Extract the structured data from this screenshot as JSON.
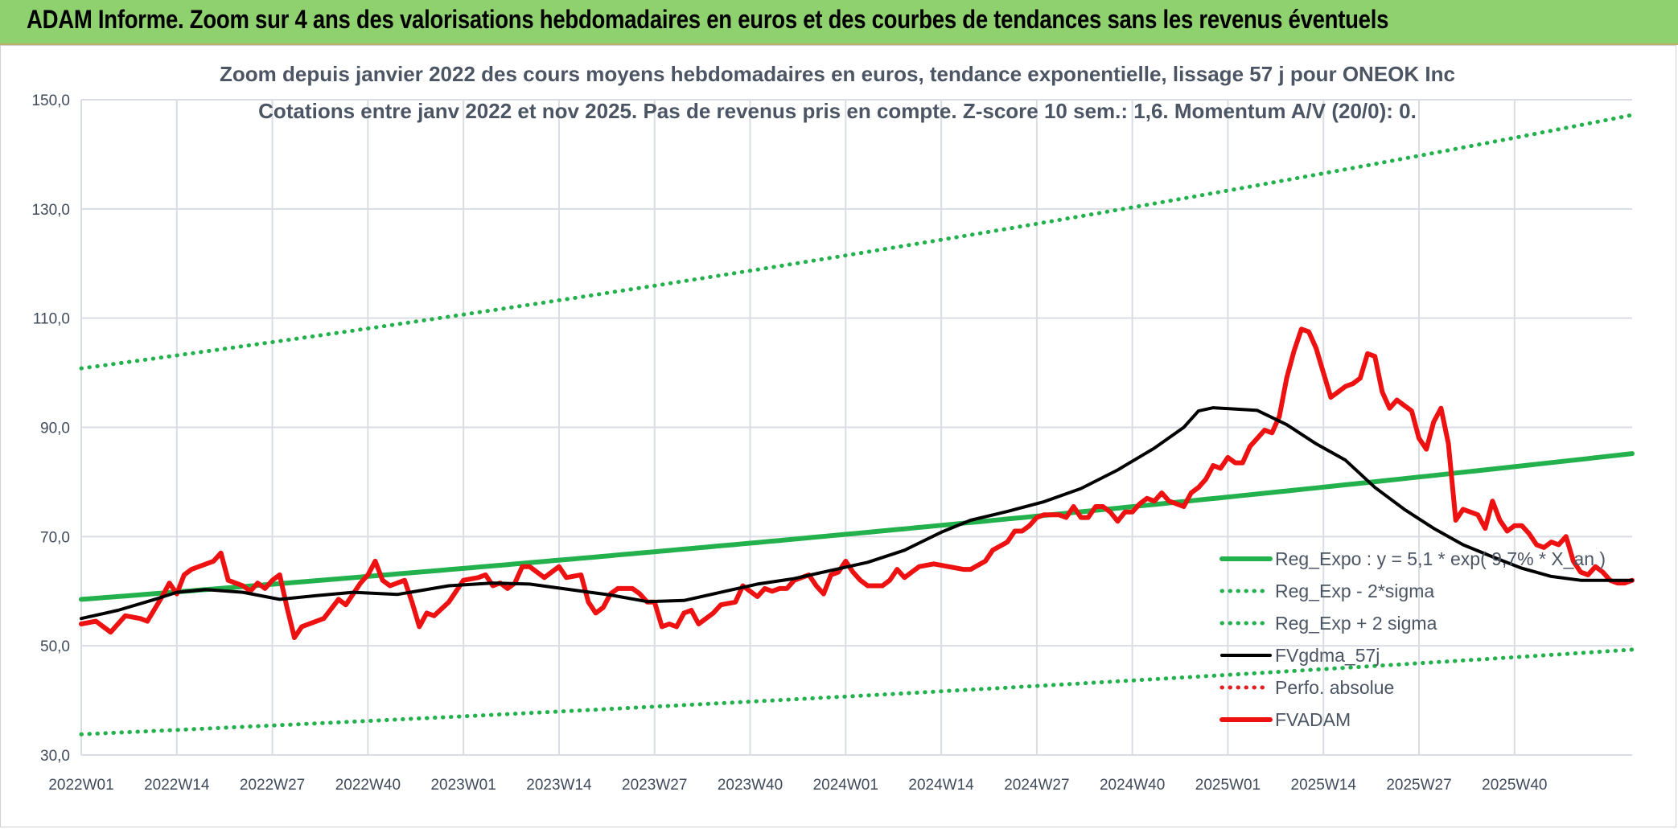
{
  "header": {
    "title": "ADAM Informe. Zoom sur 4 ans des valorisations hebdomadaires en euros et des courbes de tendances sans les revenus éventuels"
  },
  "colors": {
    "header_bg": "#8fd16f",
    "reg_expo": "#22b14c",
    "bands": "#22b14c",
    "fvgdma": "#000000",
    "perfo": "#e02020",
    "fvadam": "#ee1111",
    "grid": "#d9dde3"
  },
  "chart_data": {
    "type": "line",
    "subtitle_lines": [
      "Zoom depuis janvier 2022 des cours moyens hebdomadaires en euros, tendance exponentielle, lissage 57 j pour ONEOK Inc",
      "Cotations entre janv 2022 et nov 2025. Pas de revenus pris en compte. Z-score 10 sem.: 1,6. Momentum A/V (20/0): 0."
    ],
    "ylim": [
      30,
      150
    ],
    "yticks": [
      "30,0",
      "50,0",
      "70,0",
      "90,0",
      "110,0",
      "130,0",
      "150,0"
    ],
    "ytick_values": [
      30,
      50,
      70,
      90,
      110,
      130,
      150
    ],
    "xticks": [
      "2022W01",
      "2022W14",
      "2022W27",
      "2022W40",
      "2023W01",
      "2023W14",
      "2023W27",
      "2023W40",
      "2024W01",
      "2024W14",
      "2024W27",
      "2024W40",
      "2025W01",
      "2025W14",
      "2025W27",
      "2025W40"
    ],
    "xtick_index": [
      0,
      13,
      26,
      39,
      52,
      65,
      78,
      91,
      104,
      117,
      130,
      143,
      156,
      169,
      182,
      195
    ],
    "n_weeks": 212,
    "grid": true,
    "legend_position": "right",
    "series": [
      {
        "name": "Reg_Expo : y = 5,1 * exp( 9,7% * X_an )",
        "style": "solid-thick",
        "color_key": "reg_expo",
        "key_points": [
          [
            0,
            58.5
          ],
          [
            211,
            85.2
          ]
        ],
        "interp": "exp"
      },
      {
        "name": "Reg_Exp - 2*sigma",
        "style": "dotted",
        "color_key": "bands",
        "key_points": [
          [
            0,
            33.8
          ],
          [
            211,
            49.3
          ]
        ],
        "interp": "exp"
      },
      {
        "name": "Reg_Exp + 2 sigma",
        "style": "dotted",
        "color_key": "bands",
        "key_points": [
          [
            0,
            100.8
          ],
          [
            211,
            147.2
          ]
        ],
        "interp": "exp"
      },
      {
        "name": "FVgdma_57j",
        "style": "solid",
        "color_key": "fvgdma",
        "key_points": [
          [
            0,
            55
          ],
          [
            5,
            56.5
          ],
          [
            10,
            58.5
          ],
          [
            13,
            59.8
          ],
          [
            17,
            60.3
          ],
          [
            22,
            59.8
          ],
          [
            27,
            58.5
          ],
          [
            32,
            59.2
          ],
          [
            37,
            59.8
          ],
          [
            43,
            59.4
          ],
          [
            50,
            61
          ],
          [
            56,
            61.5
          ],
          [
            61,
            61.3
          ],
          [
            67,
            60.2
          ],
          [
            72,
            59.3
          ],
          [
            77,
            58.1
          ],
          [
            82,
            58.3
          ],
          [
            87,
            59.8
          ],
          [
            92,
            61.3
          ],
          [
            97,
            62.3
          ],
          [
            102,
            63.8
          ],
          [
            107,
            65.3
          ],
          [
            112,
            67.5
          ],
          [
            117,
            70.8
          ],
          [
            121,
            73
          ],
          [
            126,
            74.6
          ],
          [
            131,
            76.4
          ],
          [
            136,
            78.8
          ],
          [
            141,
            82.2
          ],
          [
            146,
            86.2
          ],
          [
            150,
            90
          ],
          [
            152,
            93
          ],
          [
            154,
            93.6
          ],
          [
            160,
            93.1
          ],
          [
            164,
            90.5
          ],
          [
            168,
            87
          ],
          [
            172,
            84
          ],
          [
            176,
            79
          ],
          [
            180,
            75
          ],
          [
            184,
            71.5
          ],
          [
            188,
            68.5
          ],
          [
            192,
            66.3
          ],
          [
            196,
            64.2
          ],
          [
            200,
            62.7
          ],
          [
            204,
            62
          ],
          [
            211,
            62
          ]
        ]
      },
      {
        "name": "Perfo. absolue",
        "style": "dotted",
        "color_key": "perfo",
        "key_points": []
      },
      {
        "name": "FVADAM",
        "style": "solid-thick",
        "color_key": "fvadam",
        "key_points": [
          [
            0,
            54
          ],
          [
            2,
            54.5
          ],
          [
            4,
            52.5
          ],
          [
            6,
            55.5
          ],
          [
            8,
            55
          ],
          [
            9,
            54.5
          ],
          [
            11,
            59
          ],
          [
            12,
            61.5
          ],
          [
            13,
            59.5
          ],
          [
            14,
            63
          ],
          [
            15,
            64
          ],
          [
            17,
            65
          ],
          [
            18,
            65.5
          ],
          [
            19,
            67
          ],
          [
            20,
            62
          ],
          [
            22,
            61
          ],
          [
            23,
            60
          ],
          [
            24,
            61.5
          ],
          [
            25,
            60.5
          ],
          [
            26,
            62
          ],
          [
            27,
            63
          ],
          [
            28,
            57
          ],
          [
            29,
            51.5
          ],
          [
            30,
            53.5
          ],
          [
            32,
            54.5
          ],
          [
            33,
            55
          ],
          [
            35,
            58.5
          ],
          [
            36,
            57.5
          ],
          [
            38,
            61.5
          ],
          [
            39,
            63
          ],
          [
            40,
            65.5
          ],
          [
            41,
            62
          ],
          [
            42,
            61
          ],
          [
            43,
            61.5
          ],
          [
            44,
            62
          ],
          [
            45,
            58
          ],
          [
            46,
            53.5
          ],
          [
            47,
            56
          ],
          [
            48,
            55.5
          ],
          [
            50,
            58
          ],
          [
            51,
            60
          ],
          [
            52,
            62
          ],
          [
            54,
            62.5
          ],
          [
            55,
            63
          ],
          [
            56,
            61
          ],
          [
            57,
            61.5
          ],
          [
            58,
            60.5
          ],
          [
            59,
            61.5
          ],
          [
            60,
            64.5
          ],
          [
            61,
            64.5
          ],
          [
            62,
            63.5
          ],
          [
            63,
            62.5
          ],
          [
            65,
            64.5
          ],
          [
            66,
            62.5
          ],
          [
            68,
            63
          ],
          [
            69,
            58
          ],
          [
            70,
            56
          ],
          [
            71,
            57
          ],
          [
            72,
            59.5
          ],
          [
            73,
            60.5
          ],
          [
            75,
            60.5
          ],
          [
            76,
            59.5
          ],
          [
            77,
            58
          ],
          [
            78,
            58
          ],
          [
            79,
            53.5
          ],
          [
            80,
            54
          ],
          [
            81,
            53.5
          ],
          [
            82,
            56
          ],
          [
            83,
            56.5
          ],
          [
            84,
            54
          ],
          [
            85,
            55
          ],
          [
            86,
            56
          ],
          [
            87,
            57.5
          ],
          [
            89,
            58
          ],
          [
            90,
            61
          ],
          [
            91,
            60
          ],
          [
            92,
            59
          ],
          [
            93,
            60.5
          ],
          [
            94,
            60
          ],
          [
            95,
            60.5
          ],
          [
            96,
            60.5
          ],
          [
            97,
            62
          ],
          [
            98,
            62.5
          ],
          [
            99,
            63
          ],
          [
            100,
            61
          ],
          [
            101,
            59.5
          ],
          [
            102,
            63
          ],
          [
            103,
            63.5
          ],
          [
            104,
            65.5
          ],
          [
            105,
            63.5
          ],
          [
            106,
            62
          ],
          [
            107,
            61
          ],
          [
            108,
            61
          ],
          [
            109,
            61
          ],
          [
            110,
            62
          ],
          [
            111,
            64
          ],
          [
            112,
            62.5
          ],
          [
            113,
            63.5
          ],
          [
            114,
            64.5
          ],
          [
            116,
            65
          ],
          [
            118,
            64.5
          ],
          [
            120,
            64
          ],
          [
            121,
            64
          ],
          [
            123,
            65.5
          ],
          [
            124,
            67.5
          ],
          [
            126,
            69
          ],
          [
            127,
            71
          ],
          [
            128,
            71
          ],
          [
            129,
            72
          ],
          [
            130,
            73.5
          ],
          [
            131,
            74
          ],
          [
            133,
            74
          ],
          [
            134,
            73.5
          ],
          [
            135,
            75.5
          ],
          [
            136,
            73.5
          ],
          [
            137,
            73.5
          ],
          [
            138,
            75.5
          ],
          [
            139,
            75.5
          ],
          [
            140,
            74.5
          ],
          [
            141,
            72.8
          ],
          [
            142,
            74.5
          ],
          [
            143,
            74.5
          ],
          [
            144,
            76
          ],
          [
            145,
            77
          ],
          [
            146,
            76.5
          ],
          [
            147,
            78
          ],
          [
            148,
            76.5
          ],
          [
            149,
            76
          ],
          [
            150,
            75.5
          ],
          [
            151,
            78
          ],
          [
            152,
            79
          ],
          [
            153,
            80.5
          ],
          [
            154,
            83
          ],
          [
            155,
            82.5
          ],
          [
            156,
            84.5
          ],
          [
            157,
            83.5
          ],
          [
            158,
            83.5
          ],
          [
            159,
            86.5
          ],
          [
            160,
            88
          ],
          [
            161,
            89.5
          ],
          [
            162,
            89
          ],
          [
            163,
            92
          ],
          [
            164,
            99
          ],
          [
            165,
            104
          ],
          [
            166,
            108
          ],
          [
            167,
            107.5
          ],
          [
            168,
            104.5
          ],
          [
            169,
            100
          ],
          [
            170,
            95.5
          ],
          [
            171,
            96.5
          ],
          [
            172,
            97.5
          ],
          [
            173,
            98
          ],
          [
            174,
            99
          ],
          [
            175,
            103.5
          ],
          [
            176,
            103
          ],
          [
            177,
            96.5
          ],
          [
            178,
            93.5
          ],
          [
            179,
            95
          ],
          [
            180,
            94
          ],
          [
            181,
            93
          ],
          [
            182,
            88
          ],
          [
            183,
            86
          ],
          [
            184,
            91
          ],
          [
            185,
            93.5
          ],
          [
            186,
            87
          ],
          [
            187,
            73
          ],
          [
            188,
            75
          ],
          [
            189,
            74.5
          ],
          [
            190,
            74
          ],
          [
            191,
            71.5
          ],
          [
            192,
            76.5
          ],
          [
            193,
            73
          ],
          [
            194,
            71
          ],
          [
            195,
            72
          ],
          [
            196,
            72
          ],
          [
            197,
            70.5
          ],
          [
            198,
            68.5
          ],
          [
            199,
            68
          ],
          [
            200,
            69
          ],
          [
            201,
            68.5
          ],
          [
            202,
            70
          ],
          [
            203,
            65.5
          ],
          [
            204,
            63.5
          ],
          [
            205,
            63
          ],
          [
            206,
            64.5
          ],
          [
            207,
            63.5
          ],
          [
            208,
            62
          ],
          [
            209,
            61.5
          ],
          [
            210,
            61.5
          ],
          [
            211,
            62
          ]
        ]
      }
    ]
  }
}
